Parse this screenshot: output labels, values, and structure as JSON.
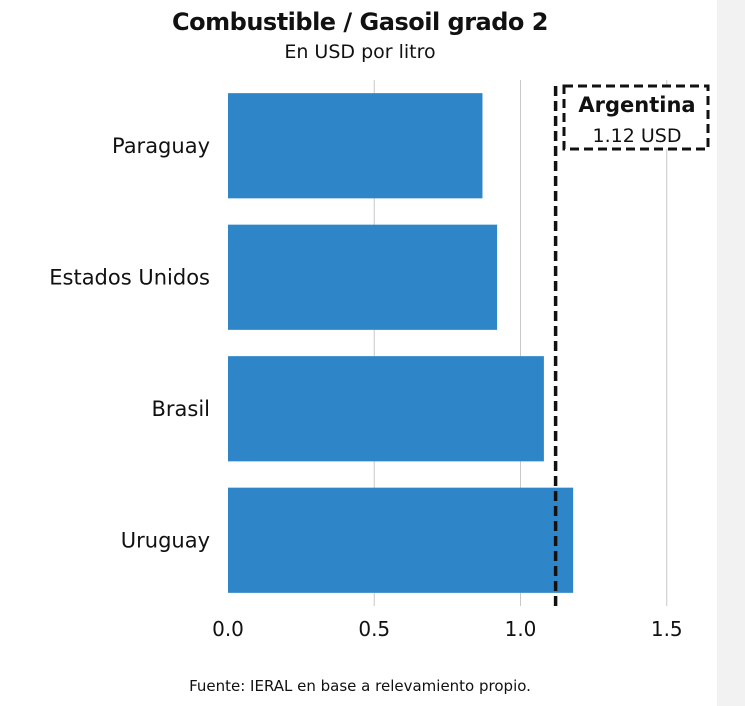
{
  "chart_data": {
    "type": "bar",
    "orientation": "horizontal",
    "title": "Combustible / Gasoil grado 2",
    "subtitle": "En USD por litro",
    "categories": [
      "Paraguay",
      "Estados Unidos",
      "Brasil",
      "Uruguay"
    ],
    "values": [
      0.87,
      0.92,
      1.08,
      1.18
    ],
    "xlim": [
      0,
      1.6
    ],
    "xticks": [
      0,
      0.5,
      1,
      1.5
    ],
    "xtick_labels": [
      "0.0",
      "0.5",
      "1.0",
      "1.5"
    ],
    "grid": "vertical",
    "bar_color": "#2e86c9",
    "reference_line": {
      "value": 1.12,
      "style": "dashed",
      "color": "#111111"
    },
    "annotation": {
      "title": "Argentina",
      "value_text": "1.12 USD"
    },
    "source": "Fuente: IERAL en base a relevamiento propio."
  }
}
